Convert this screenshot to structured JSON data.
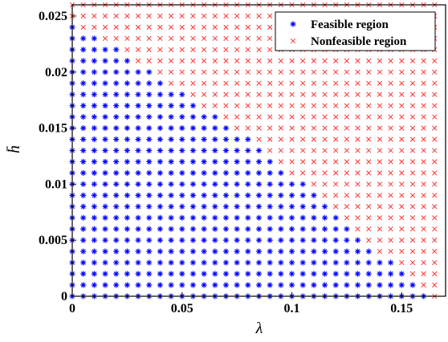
{
  "chart_data": {
    "type": "scatter",
    "xlabel": "λ",
    "ylabel": "h̄",
    "xlim": [
      0,
      0.17
    ],
    "ylim": [
      0,
      0.026
    ],
    "x_step": 0.005,
    "y_step": 0.001,
    "x_ticks": [
      0,
      0.05,
      0.1,
      0.15
    ],
    "x_tick_labels": [
      "0",
      "0.05",
      "0.1",
      "0.15"
    ],
    "y_ticks": [
      0,
      0.005,
      0.01,
      0.015,
      0.02,
      0.025
    ],
    "y_tick_labels": [
      "0",
      "0.005",
      "0.01",
      "0.015",
      "0.02",
      "0.025"
    ],
    "grid": false,
    "legend_position": "top-right",
    "series": [
      {
        "name": "Feasible region",
        "marker": "*",
        "color": "#0000ff",
        "boundary_note": "max feasible h̄ for each λ (points at h̄ = 0..max step 0.001)",
        "boundary": [
          {
            "lambda": 0.0,
            "h_max": 0.024
          },
          {
            "lambda": 0.005,
            "h_max": 0.023
          },
          {
            "lambda": 0.01,
            "h_max": 0.023
          },
          {
            "lambda": 0.015,
            "h_max": 0.022
          },
          {
            "lambda": 0.02,
            "h_max": 0.022
          },
          {
            "lambda": 0.025,
            "h_max": 0.021
          },
          {
            "lambda": 0.03,
            "h_max": 0.02
          },
          {
            "lambda": 0.035,
            "h_max": 0.02
          },
          {
            "lambda": 0.04,
            "h_max": 0.019
          },
          {
            "lambda": 0.045,
            "h_max": 0.018
          },
          {
            "lambda": 0.05,
            "h_max": 0.018
          },
          {
            "lambda": 0.055,
            "h_max": 0.017
          },
          {
            "lambda": 0.06,
            "h_max": 0.016
          },
          {
            "lambda": 0.065,
            "h_max": 0.016
          },
          {
            "lambda": 0.07,
            "h_max": 0.015
          },
          {
            "lambda": 0.075,
            "h_max": 0.014
          },
          {
            "lambda": 0.08,
            "h_max": 0.014
          },
          {
            "lambda": 0.085,
            "h_max": 0.013
          },
          {
            "lambda": 0.09,
            "h_max": 0.012
          },
          {
            "lambda": 0.095,
            "h_max": 0.011
          },
          {
            "lambda": 0.1,
            "h_max": 0.01
          },
          {
            "lambda": 0.105,
            "h_max": 0.01
          },
          {
            "lambda": 0.11,
            "h_max": 0.009
          },
          {
            "lambda": 0.115,
            "h_max": 0.008
          },
          {
            "lambda": 0.12,
            "h_max": 0.007
          },
          {
            "lambda": 0.125,
            "h_max": 0.006
          },
          {
            "lambda": 0.13,
            "h_max": 0.005
          },
          {
            "lambda": 0.135,
            "h_max": 0.004
          },
          {
            "lambda": 0.14,
            "h_max": 0.003
          },
          {
            "lambda": 0.145,
            "h_max": 0.003
          },
          {
            "lambda": 0.15,
            "h_max": 0.002
          },
          {
            "lambda": 0.155,
            "h_max": 0.001
          },
          {
            "lambda": 0.16,
            "h_max": 0.0
          },
          {
            "lambda": 0.165,
            "h_max": -1
          }
        ]
      },
      {
        "name": "Nonfeasible region",
        "marker": "x",
        "color": "#ff3333",
        "description": "all remaining grid points up to λ = 0.165, h̄ = 0.026"
      }
    ]
  }
}
